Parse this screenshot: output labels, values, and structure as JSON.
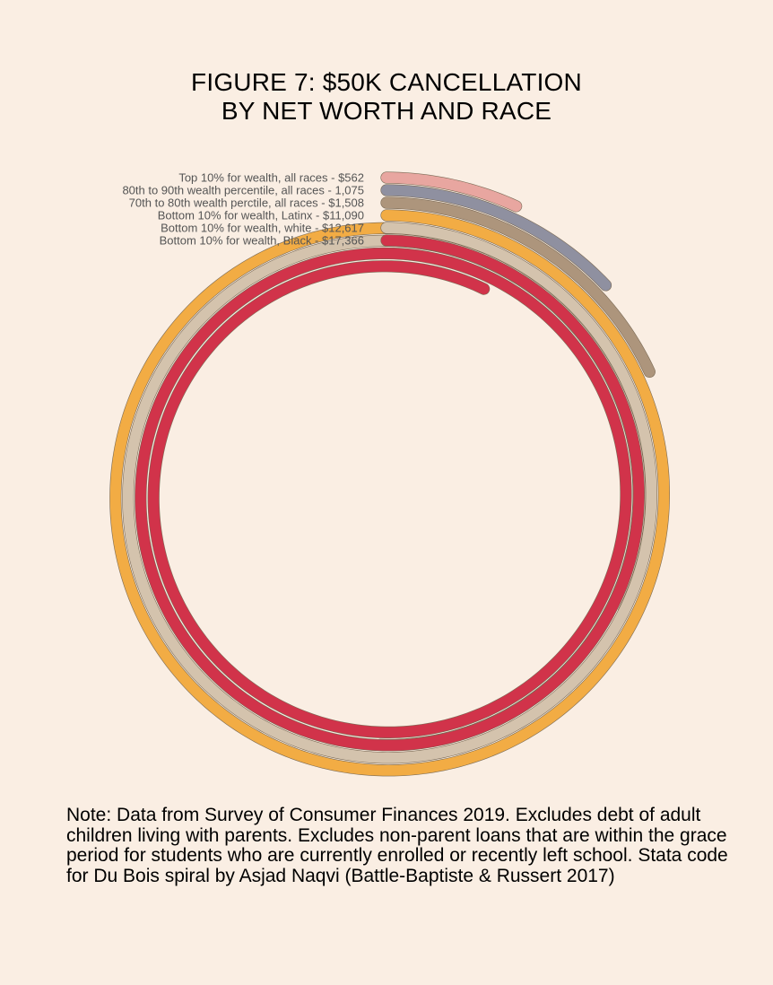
{
  "title_line1": "FIGURE 7: $50K CANCELLATION",
  "title_line2": "BY NET WORTH AND RACE",
  "note": "Note: Data from Survey of Consumer Finances 2019. Excludes debt of adult children living with parents. Excludes non-parent loans that are within the grace period for students who are currently enrolled or recently left school. Stata code for Du Bois spiral by Asjad Naqvi (Battle-Baptiste & Russert 2017)",
  "chart_data": {
    "type": "spiral",
    "style": "Du Bois spiral",
    "series": [
      {
        "label": "Top 10% for wealth, all races - $562",
        "value": 562,
        "color": "#e8a6a0"
      },
      {
        "label": "80th to 90th wealth percentile, all races - 1,075",
        "value": 1075,
        "color": "#8f90a0"
      },
      {
        "label": "70th to 80th wealth perctile, all races - $1,508",
        "value": 1508,
        "color": "#ad957c"
      },
      {
        "label": "Bottom 10% for wealth, Latinx - $11,090",
        "value": 11090,
        "color": "#f2ac44"
      },
      {
        "label": "Bottom 10% for wealth, white - $12,617",
        "value": 12617,
        "color": "#d4c3ad"
      },
      {
        "label": "Bottom 10% for wealth, Black - $17,366",
        "value": 17366,
        "color": "#d1334a"
      }
    ],
    "label_color": "#555555"
  }
}
